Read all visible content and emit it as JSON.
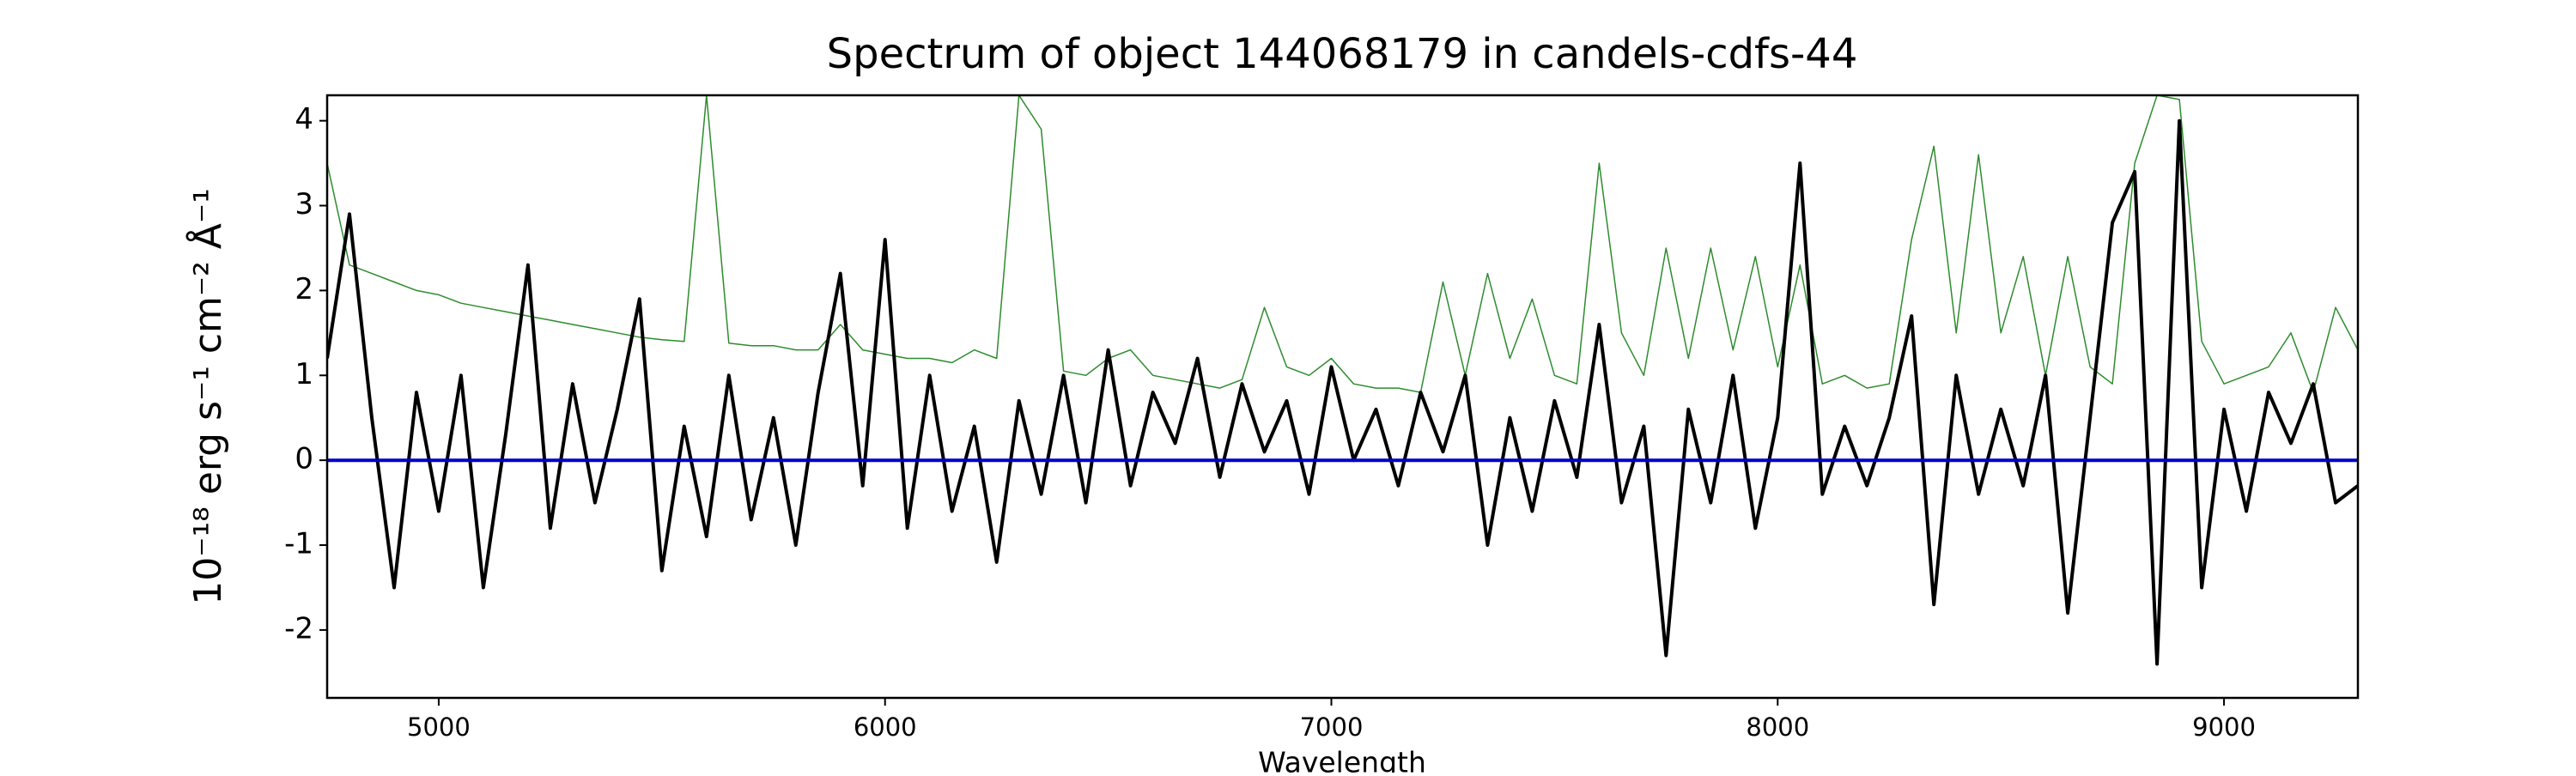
{
  "chart_data": {
    "type": "line",
    "title": "Spectrum of object 144068179 in candels-cdfs-44",
    "xlabel": "Wavelength",
    "ylabel": "10⁻¹⁸ erg s⁻¹ cm⁻² Å⁻¹",
    "xlim": [
      4750,
      9300
    ],
    "xticks": [
      5000,
      6000,
      7000,
      8000,
      9000
    ],
    "ylim": [
      -2.8,
      4.3
    ],
    "yticks": [
      -2,
      -1,
      0,
      1,
      2,
      3,
      4
    ],
    "grid": false,
    "series": [
      {
        "color": "#2e8b2e",
        "linewidth": 1.5,
        "x": [
          4750,
          4800,
          4850,
          4900,
          4950,
          5000,
          5050,
          5100,
          5150,
          5200,
          5250,
          5300,
          5350,
          5400,
          5450,
          5500,
          5550,
          5600,
          5650,
          5700,
          5750,
          5800,
          5850,
          5900,
          5950,
          6000,
          6050,
          6100,
          6150,
          6200,
          6250,
          6300,
          6350,
          6400,
          6450,
          6500,
          6550,
          6600,
          6650,
          6700,
          6750,
          6800,
          6850,
          6900,
          6950,
          7000,
          7050,
          7100,
          7150,
          7200,
          7250,
          7300,
          7350,
          7400,
          7450,
          7500,
          7550,
          7600,
          7650,
          7700,
          7750,
          7800,
          7850,
          7900,
          7950,
          8000,
          8050,
          8100,
          8150,
          8200,
          8250,
          8300,
          8350,
          8400,
          8450,
          8500,
          8550,
          8600,
          8650,
          8700,
          8750,
          8800,
          8850,
          8900,
          8950,
          9000,
          9050,
          9100,
          9150,
          9200,
          9250,
          9300
        ],
        "values": [
          3.5,
          2.3,
          2.2,
          2.1,
          2.0,
          1.95,
          1.85,
          1.8,
          1.75,
          1.7,
          1.65,
          1.6,
          1.55,
          1.5,
          1.45,
          1.42,
          1.4,
          4.3,
          1.38,
          1.35,
          1.35,
          1.3,
          1.3,
          1.6,
          1.3,
          1.25,
          1.2,
          1.2,
          1.15,
          1.3,
          1.2,
          4.3,
          3.9,
          1.05,
          1.0,
          1.2,
          1.3,
          1.0,
          0.95,
          0.9,
          0.85,
          0.95,
          1.8,
          1.1,
          1.0,
          1.2,
          0.9,
          0.85,
          0.85,
          0.8,
          2.1,
          1.0,
          2.2,
          1.2,
          1.9,
          1.0,
          0.9,
          3.5,
          1.5,
          1.0,
          2.5,
          1.2,
          2.5,
          1.3,
          2.4,
          1.1,
          2.3,
          0.9,
          1.0,
          0.85,
          0.9,
          2.6,
          3.7,
          1.5,
          3.6,
          1.5,
          2.4,
          1.0,
          2.4,
          1.1,
          0.9,
          3.5,
          4.3,
          4.25,
          1.4,
          0.9,
          1.0,
          1.1,
          1.5,
          0.8,
          1.8,
          1.3
        ]
      },
      {
        "color": "#000000",
        "linewidth": 4,
        "x": [
          4750,
          4800,
          4850,
          4900,
          4950,
          5000,
          5050,
          5100,
          5150,
          5200,
          5250,
          5300,
          5350,
          5400,
          5450,
          5500,
          5550,
          5600,
          5650,
          5700,
          5750,
          5800,
          5850,
          5900,
          5950,
          6000,
          6050,
          6100,
          6150,
          6200,
          6250,
          6300,
          6350,
          6400,
          6450,
          6500,
          6550,
          6600,
          6650,
          6700,
          6750,
          6800,
          6850,
          6900,
          6950,
          7000,
          7050,
          7100,
          7150,
          7200,
          7250,
          7300,
          7350,
          7400,
          7450,
          7500,
          7550,
          7600,
          7650,
          7700,
          7750,
          7800,
          7850,
          7900,
          7950,
          8000,
          8050,
          8100,
          8150,
          8200,
          8250,
          8300,
          8350,
          8400,
          8450,
          8500,
          8550,
          8600,
          8650,
          8700,
          8750,
          8800,
          8850,
          8900,
          8950,
          9000,
          9050,
          9100,
          9150,
          9200,
          9250,
          9300
        ],
        "values": [
          1.2,
          2.9,
          0.5,
          -1.5,
          0.8,
          -0.6,
          1.0,
          -1.5,
          0.3,
          2.3,
          -0.8,
          0.9,
          -0.5,
          0.6,
          1.9,
          -1.3,
          0.4,
          -0.9,
          1.0,
          -0.7,
          0.5,
          -1.0,
          0.8,
          2.2,
          -0.3,
          2.6,
          -0.8,
          1.0,
          -0.6,
          0.4,
          -1.2,
          0.7,
          -0.4,
          1.0,
          -0.5,
          1.3,
          -0.3,
          0.8,
          0.2,
          1.2,
          -0.2,
          0.9,
          0.1,
          0.7,
          -0.4,
          1.1,
          0.0,
          0.6,
          -0.3,
          0.8,
          0.1,
          1.0,
          -1.0,
          0.5,
          -0.6,
          0.7,
          -0.2,
          1.6,
          -0.5,
          0.4,
          -2.3,
          0.6,
          -0.5,
          1.0,
          -0.8,
          0.5,
          3.5,
          -0.4,
          0.4,
          -0.3,
          0.5,
          1.7,
          -1.7,
          1.0,
          -0.4,
          0.6,
          -0.3,
          1.0,
          -1.8,
          0.5,
          2.8,
          3.4,
          -2.4,
          4.0,
          -1.5,
          0.6,
          -0.6,
          0.8,
          0.2,
          0.9,
          -0.5,
          -0.3
        ]
      },
      {
        "color": "#0000cc",
        "linewidth": 4,
        "x": [
          4750,
          9300
        ],
        "values": [
          0,
          0
        ]
      }
    ]
  }
}
